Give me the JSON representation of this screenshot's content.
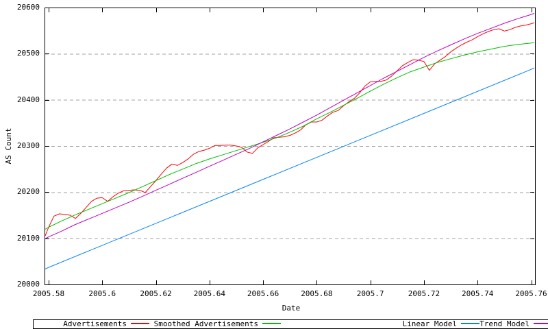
{
  "chart_data": {
    "type": "line",
    "title": "",
    "xlabel": "Date",
    "ylabel": "AS Count",
    "xlim": [
      2005.58,
      2005.76
    ],
    "ylim": [
      20000,
      20600
    ],
    "x_tick_values": [
      2005.58,
      2005.6,
      2005.62,
      2005.64,
      2005.66,
      2005.68,
      2005.7,
      2005.72,
      2005.74,
      2005.76
    ],
    "x_tick_labels": [
      "2005.58",
      "2005.6",
      "2005.62",
      "2005.64",
      "2005.66",
      "2005.68",
      "2005.7",
      "2005.72",
      "2005.74",
      "2005.76"
    ],
    "y_tick_values": [
      20000,
      20100,
      20200,
      20300,
      20400,
      20500,
      20600
    ],
    "y_tick_labels": [
      "20000",
      "20100",
      "20200",
      "20300",
      "20400",
      "20500",
      "20600"
    ],
    "grid_y_values": [
      20100,
      20200,
      20300,
      20400,
      20500
    ],
    "grid": "horizontal dashed gray lines at each y tick, no vertical grid",
    "legend_position": "below, horizontal row in bordered box",
    "colors": {
      "background": "#ffffff",
      "axis": "#000000",
      "grid": "#a0a0a0"
    },
    "series": [
      {
        "name": "Advertisements",
        "color": "#ff0000",
        "x": [
          2005.58,
          2005.582,
          2005.584,
          2005.586,
          2005.588,
          2005.59,
          2005.592,
          2005.594,
          2005.596,
          2005.598,
          2005.6,
          2005.602,
          2005.604,
          2005.606,
          2005.608,
          2005.61,
          2005.612,
          2005.614,
          2005.616,
          2005.618,
          2005.62,
          2005.622,
          2005.624,
          2005.626,
          2005.628,
          2005.63,
          2005.632,
          2005.634,
          2005.636,
          2005.638,
          2005.64,
          2005.642,
          2005.644,
          2005.646,
          2005.648,
          2005.65,
          2005.652,
          2005.654,
          2005.656,
          2005.658,
          2005.66,
          2005.662,
          2005.664,
          2005.666,
          2005.668,
          2005.67,
          2005.672,
          2005.674,
          2005.676,
          2005.678,
          2005.68,
          2005.682,
          2005.684,
          2005.686,
          2005.688,
          2005.69,
          2005.692,
          2005.694,
          2005.696,
          2005.698,
          2005.7,
          2005.702,
          2005.704,
          2005.706,
          2005.708,
          2005.71,
          2005.712,
          2005.714,
          2005.716,
          2005.718,
          2005.72,
          2005.722,
          2005.724,
          2005.726,
          2005.728,
          2005.73,
          2005.732,
          2005.734,
          2005.736,
          2005.738,
          2005.74,
          2005.742,
          2005.744,
          2005.746,
          2005.748,
          2005.75,
          2005.752,
          2005.754,
          2005.756,
          2005.758,
          2005.76
        ],
        "y": [
          20124,
          20148,
          20153,
          20152,
          20150,
          20143,
          20154,
          20167,
          20180,
          20187,
          20188,
          20180,
          20190,
          20198,
          20203,
          20204,
          20205,
          20204,
          20199,
          20212,
          20225,
          20239,
          20252,
          20261,
          20258,
          20264,
          20272,
          20282,
          20288,
          20291,
          20295,
          20301,
          20301,
          20302,
          20302,
          20300,
          20297,
          20287,
          20284,
          20296,
          20303,
          20310,
          20318,
          20319,
          20320,
          20323,
          20328,
          20335,
          20346,
          20352,
          20352,
          20356,
          20365,
          20373,
          20377,
          20387,
          20396,
          20403,
          20415,
          20430,
          20439,
          20440,
          20440,
          20443,
          20452,
          20463,
          20474,
          20481,
          20487,
          20486,
          20483,
          20464,
          20478,
          20486,
          20494,
          20504,
          20512,
          20519,
          20525,
          20530,
          20537,
          20543,
          20548,
          20552,
          20554,
          20549,
          20552,
          20557,
          20560,
          20562,
          20565
        ]
      },
      {
        "name": "Smoothed Advertisements",
        "color": "#00c000",
        "x": [
          2005.58,
          2005.585,
          2005.59,
          2005.595,
          2005.6,
          2005.605,
          2005.61,
          2005.615,
          2005.62,
          2005.625,
          2005.63,
          2005.635,
          2005.64,
          2005.645,
          2005.65,
          2005.655,
          2005.66,
          2005.665,
          2005.67,
          2005.675,
          2005.68,
          2005.685,
          2005.69,
          2005.695,
          2005.7,
          2005.705,
          2005.71,
          2005.715,
          2005.72,
          2005.725,
          2005.73,
          2005.735,
          2005.74,
          2005.745,
          2005.75,
          2005.755,
          2005.76
        ],
        "y": [
          20124,
          20138,
          20151,
          20163,
          20175,
          20187,
          20199,
          20212,
          20225,
          20238,
          20250,
          20262,
          20272,
          20281,
          20290,
          20299,
          20308,
          20318,
          20330,
          20343,
          20359,
          20373,
          20388,
          20403,
          20419,
          20434,
          20448,
          20461,
          20471,
          20481,
          20489,
          20497,
          20504,
          20510,
          20516,
          20520,
          20523
        ]
      },
      {
        "name": "Linear Model",
        "color": "#0080ff",
        "x": [
          2005.58,
          2005.76
        ],
        "y": [
          20037,
          20466
        ]
      },
      {
        "name": "Trend Model",
        "color": "#c000c0",
        "x": [
          2005.58,
          2005.585,
          2005.59,
          2005.595,
          2005.6,
          2005.605,
          2005.61,
          2005.615,
          2005.62,
          2005.625,
          2005.63,
          2005.635,
          2005.64,
          2005.645,
          2005.65,
          2005.655,
          2005.66,
          2005.665,
          2005.67,
          2005.675,
          2005.68,
          2005.685,
          2005.69,
          2005.695,
          2005.7,
          2005.705,
          2005.71,
          2005.715,
          2005.72,
          2005.725,
          2005.73,
          2005.735,
          2005.74,
          2005.745,
          2005.75,
          2005.755,
          2005.76
        ],
        "y": [
          20103,
          20116,
          20130,
          20142,
          20154,
          20166,
          20178,
          20191,
          20204,
          20217,
          20230,
          20243,
          20256,
          20269,
          20282,
          20295,
          20309,
          20323,
          20337,
          20352,
          20367,
          20383,
          20399,
          20415,
          20431,
          20447,
          20462,
          20477,
          20492,
          20506,
          20519,
          20532,
          20544,
          20555,
          20566,
          20576,
          20585
        ]
      }
    ]
  }
}
